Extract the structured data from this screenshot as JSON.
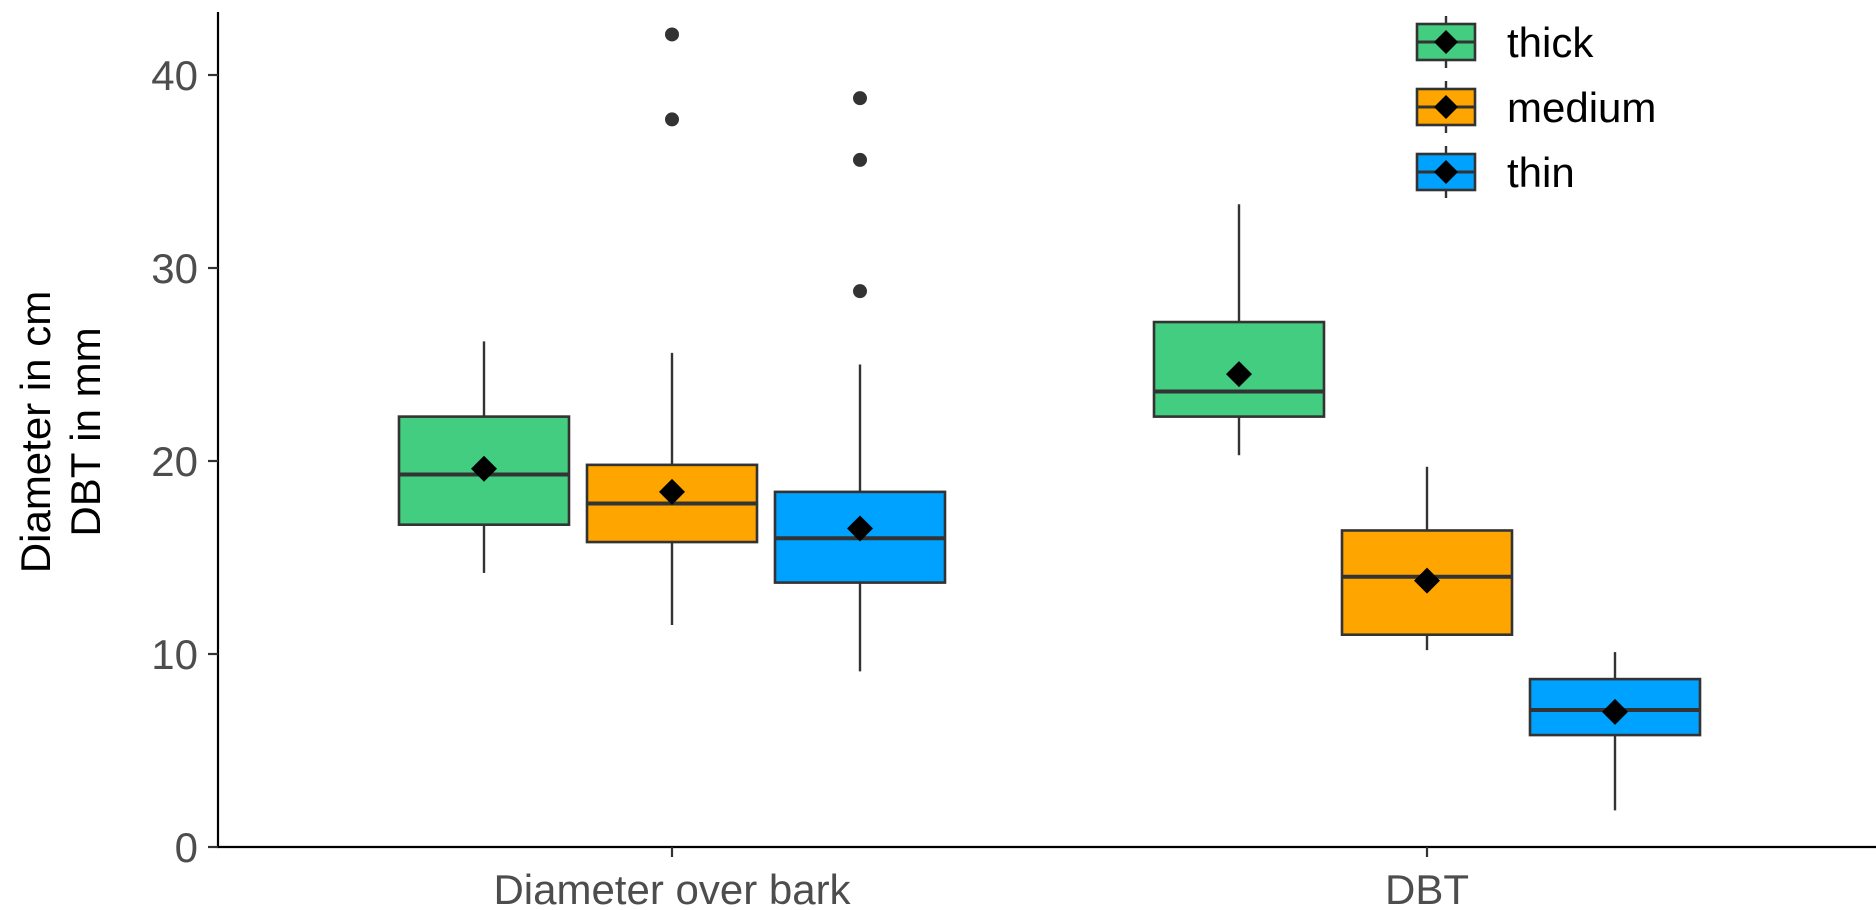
{
  "chart_data": {
    "type": "boxplot",
    "title": "",
    "xlabel": "",
    "ylabel_lines": [
      "Diameter in cm",
      "DBT in mm"
    ],
    "ylim": [
      0,
      44
    ],
    "yticks": [
      0,
      10,
      20,
      30,
      40
    ],
    "categories": [
      "Diameter over bark",
      "DBT"
    ],
    "grid": false,
    "legend": {
      "placement": "top-right"
    },
    "colors": {
      "thick": "#43CD80",
      "medium": "#FFA500",
      "thin": "#00A2FF",
      "outline": "#333333",
      "mean": "#000000"
    },
    "series": [
      {
        "name": "thick",
        "boxes": [
          {
            "min": 14.2,
            "q1": 16.7,
            "median": 19.3,
            "q3": 22.3,
            "max": 26.2,
            "mean": 19.6,
            "outliers": []
          },
          {
            "min": 20.3,
            "q1": 22.3,
            "median": 23.6,
            "q3": 27.2,
            "max": 33.3,
            "mean": 24.5,
            "outliers": []
          }
        ]
      },
      {
        "name": "medium",
        "boxes": [
          {
            "min": 11.5,
            "q1": 15.8,
            "median": 17.8,
            "q3": 19.8,
            "max": 25.6,
            "mean": 18.4,
            "outliers": [
              37.7,
              42.1
            ]
          },
          {
            "min": 10.2,
            "q1": 11.0,
            "median": 14.0,
            "q3": 16.4,
            "max": 19.7,
            "mean": 13.8,
            "outliers": []
          }
        ]
      },
      {
        "name": "thin",
        "boxes": [
          {
            "min": 9.1,
            "q1": 13.7,
            "median": 16.0,
            "q3": 18.4,
            "max": 25.0,
            "mean": 16.5,
            "outliers": [
              28.8,
              35.6,
              38.8
            ]
          },
          {
            "min": 1.9,
            "q1": 5.8,
            "median": 7.1,
            "q3": 8.7,
            "max": 10.1,
            "mean": 7.0,
            "outliers": []
          }
        ]
      }
    ]
  }
}
